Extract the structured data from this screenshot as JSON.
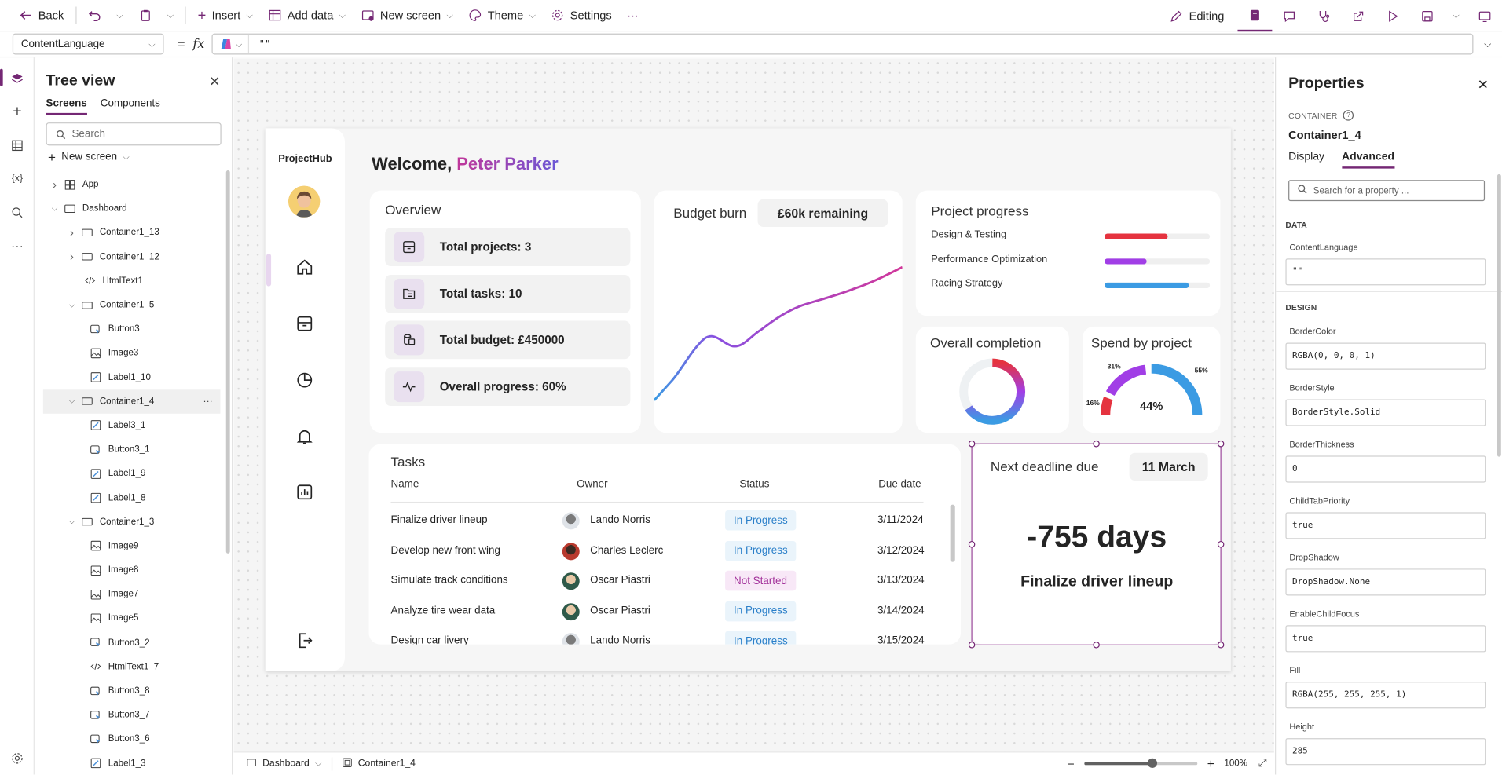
{
  "toolbar": {
    "back": "Back",
    "insert": "Insert",
    "add_data": "Add data",
    "new_screen": "New screen",
    "theme": "Theme",
    "settings": "Settings",
    "more": "···",
    "editing": "Editing"
  },
  "formula": {
    "property": "ContentLanguage",
    "equals": "=",
    "fx": "fx",
    "value": "\"\""
  },
  "tree": {
    "title": "Tree view",
    "tabs": [
      "Screens",
      "Components"
    ],
    "search_placeholder": "Search",
    "new_screen": "New screen",
    "items": [
      {
        "label": "App",
        "depth": 0,
        "expander": "right",
        "icon": "app-icon"
      },
      {
        "label": "Dashboard",
        "depth": 0,
        "expander": "down",
        "icon": "screen-icon"
      },
      {
        "label": "Container1_13",
        "depth": 1,
        "expander": "right",
        "icon": "container-icon"
      },
      {
        "label": "Container1_12",
        "depth": 1,
        "expander": "right",
        "icon": "container-icon"
      },
      {
        "label": "HtmlText1",
        "depth": 1,
        "expander": "",
        "icon": "html-icon"
      },
      {
        "label": "Container1_5",
        "depth": 1,
        "expander": "down",
        "icon": "container-icon"
      },
      {
        "label": "Button3",
        "depth": 2,
        "expander": "",
        "icon": "button-icon"
      },
      {
        "label": "Image3",
        "depth": 2,
        "expander": "",
        "icon": "image-icon"
      },
      {
        "label": "Label1_10",
        "depth": 2,
        "expander": "",
        "icon": "label-icon"
      },
      {
        "label": "Container1_4",
        "depth": 1,
        "expander": "down",
        "icon": "container-icon",
        "selected": true
      },
      {
        "label": "Label3_1",
        "depth": 2,
        "expander": "",
        "icon": "label-icon"
      },
      {
        "label": "Button3_1",
        "depth": 2,
        "expander": "",
        "icon": "button-icon"
      },
      {
        "label": "Label1_9",
        "depth": 2,
        "expander": "",
        "icon": "label-icon"
      },
      {
        "label": "Label1_8",
        "depth": 2,
        "expander": "",
        "icon": "label-icon"
      },
      {
        "label": "Container1_3",
        "depth": 1,
        "expander": "down",
        "icon": "container-icon"
      },
      {
        "label": "Image9",
        "depth": 2,
        "expander": "",
        "icon": "image-icon"
      },
      {
        "label": "Image8",
        "depth": 2,
        "expander": "",
        "icon": "image-icon"
      },
      {
        "label": "Image7",
        "depth": 2,
        "expander": "",
        "icon": "image-icon"
      },
      {
        "label": "Image5",
        "depth": 2,
        "expander": "",
        "icon": "image-icon"
      },
      {
        "label": "Button3_2",
        "depth": 2,
        "expander": "",
        "icon": "button-icon"
      },
      {
        "label": "HtmlText1_7",
        "depth": 2,
        "expander": "",
        "icon": "html-icon"
      },
      {
        "label": "Button3_8",
        "depth": 2,
        "expander": "",
        "icon": "button-icon"
      },
      {
        "label": "Button3_7",
        "depth": 2,
        "expander": "",
        "icon": "button-icon"
      },
      {
        "label": "Button3_6",
        "depth": 2,
        "expander": "",
        "icon": "button-icon"
      },
      {
        "label": "Label1_3",
        "depth": 2,
        "expander": "",
        "icon": "label-icon"
      }
    ]
  },
  "dashboard": {
    "brand": "ProjectHub",
    "welcome_prefix": "Welcome, ",
    "user_name": "Peter Parker",
    "overview": {
      "title": "Overview",
      "rows": [
        {
          "text": "Total projects: 3",
          "icon": "projects-icon"
        },
        {
          "text": "Total tasks: 10",
          "icon": "tasks-icon"
        },
        {
          "text": "Total budget: £450000",
          "icon": "budget-icon"
        },
        {
          "text": "Overall progress: 60%",
          "icon": "activity-icon"
        }
      ]
    },
    "budget": {
      "title": "Budget burn",
      "badge": "£60k remaining"
    },
    "progress": {
      "title": "Project progress",
      "items": [
        {
          "label": "Design & Testing",
          "value": 0.6,
          "color": "#e5333f"
        },
        {
          "label": "Performance Optimization",
          "value": 0.4,
          "color": "#a13ee6"
        },
        {
          "label": "Racing Strategy",
          "value": 0.8,
          "color": "#3b9be3"
        }
      ]
    },
    "completion": {
      "title": "Overall completion"
    },
    "spend": {
      "title": "Spend by project",
      "center": "44%",
      "labels": [
        "16%",
        "31%",
        "55%"
      ]
    },
    "tasks": {
      "title": "Tasks",
      "headers": [
        "Name",
        "Owner",
        "Status",
        "Due date"
      ],
      "rows": [
        {
          "name": "Finalize driver lineup",
          "owner": "Lando Norris",
          "status": "In Progress",
          "due": "3/11/2024"
        },
        {
          "name": "Develop new front wing",
          "owner": "Charles Leclerc",
          "status": "In Progress",
          "due": "3/12/2024"
        },
        {
          "name": "Simulate track conditions",
          "owner": "Oscar Piastri",
          "status": "Not Started",
          "due": "3/13/2024"
        },
        {
          "name": "Analyze tire wear data",
          "owner": "Oscar Piastri",
          "status": "In Progress",
          "due": "3/14/2024"
        },
        {
          "name": "Design car livery",
          "owner": "Lando Norris",
          "status": "In Progress",
          "due": "3/15/2024"
        }
      ]
    },
    "deadline": {
      "title": "Next deadline due",
      "badge": "11 March",
      "days": "-755 days",
      "task": "Finalize driver lineup"
    }
  },
  "bottombar": {
    "screen": "Dashboard",
    "control": "Container1_4",
    "zoom": "100%",
    "zoom_value": 0.6
  },
  "properties": {
    "title": "Properties",
    "kind": "CONTAINER",
    "name": "Container1_4",
    "tabs": [
      "Display",
      "Advanced"
    ],
    "search_placeholder": "Search for a property ...",
    "section_data": "DATA",
    "section_design": "DESIGN",
    "fields": [
      {
        "label": "ContentLanguage",
        "value": "\"\""
      },
      {
        "label": "BorderColor",
        "value": "RGBA(0, 0, 0, 1)"
      },
      {
        "label": "BorderStyle",
        "value": "BorderStyle.Solid"
      },
      {
        "label": "BorderThickness",
        "value": "0"
      },
      {
        "label": "ChildTabPriority",
        "value": "true"
      },
      {
        "label": "DropShadow",
        "value": "DropShadow.None"
      },
      {
        "label": "EnableChildFocus",
        "value": "true"
      },
      {
        "label": "Fill",
        "value": "RGBA(255, 255, 255, 1)"
      },
      {
        "label": "Height",
        "value": "285"
      }
    ]
  },
  "colors": {
    "accent": "#742774",
    "progress_blue": "#2a7fc9",
    "not_started": "#a2309a"
  }
}
